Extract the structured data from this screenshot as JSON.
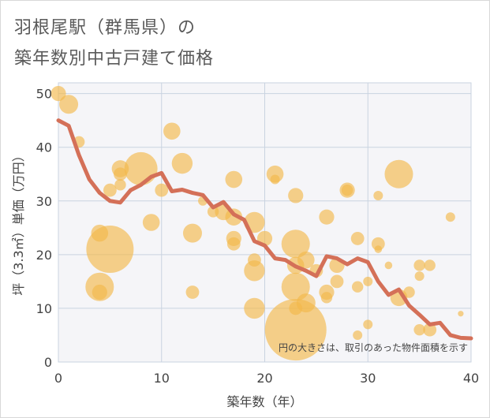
{
  "title_lines": [
    "羽根尾駅（群馬県）の",
    "築年数別中古戸建て価格"
  ],
  "chart_data": {
    "type": "scatter",
    "xlabel": "築年数（年）",
    "ylabel": "坪（3.3㎡）単価（万円）",
    "xlim": [
      0,
      40
    ],
    "ylim": [
      0,
      52
    ],
    "xticks": [
      "0",
      "10",
      "20",
      "30",
      "40"
    ],
    "yticks": [
      "0",
      "10",
      "20",
      "30",
      "40",
      "50"
    ],
    "note": "円の大きさは、取引のあった物件面積を示す",
    "colors": {
      "bubble": "#f2b84b",
      "line": "#d47058",
      "plot_bg": "#f5f5f8",
      "grid": "#c9d3e0"
    },
    "bubbles": [
      {
        "x": 0,
        "y": 50,
        "r": 1.6
      },
      {
        "x": 1,
        "y": 48,
        "r": 2
      },
      {
        "x": 2,
        "y": 41,
        "r": 1.2
      },
      {
        "x": 4,
        "y": 24,
        "r": 1.8
      },
      {
        "x": 4,
        "y": 14,
        "r": 3
      },
      {
        "x": 4,
        "y": 13,
        "r": 1.6
      },
      {
        "x": 5,
        "y": 21,
        "r": 5
      },
      {
        "x": 5,
        "y": 32,
        "r": 1.4
      },
      {
        "x": 6,
        "y": 36,
        "r": 1.8
      },
      {
        "x": 6,
        "y": 35,
        "r": 1.4
      },
      {
        "x": 6,
        "y": 33,
        "r": 1.2
      },
      {
        "x": 8,
        "y": 36,
        "r": 3.5
      },
      {
        "x": 9,
        "y": 26,
        "r": 1.8
      },
      {
        "x": 10,
        "y": 32,
        "r": 1.4
      },
      {
        "x": 11,
        "y": 43,
        "r": 1.8
      },
      {
        "x": 12,
        "y": 37,
        "r": 2.2
      },
      {
        "x": 13,
        "y": 24,
        "r": 2
      },
      {
        "x": 13,
        "y": 13,
        "r": 1.4
      },
      {
        "x": 15,
        "y": 28,
        "r": 1.2
      },
      {
        "x": 16,
        "y": 28,
        "r": 1.8
      },
      {
        "x": 17,
        "y": 34,
        "r": 1.8
      },
      {
        "x": 17,
        "y": 27,
        "r": 1.8
      },
      {
        "x": 17,
        "y": 23,
        "r": 1.6
      },
      {
        "x": 17,
        "y": 22,
        "r": 1.4
      },
      {
        "x": 19,
        "y": 26,
        "r": 2.2
      },
      {
        "x": 19,
        "y": 19,
        "r": 1.4
      },
      {
        "x": 19,
        "y": 17,
        "r": 2.2
      },
      {
        "x": 19,
        "y": 10,
        "r": 2.2
      },
      {
        "x": 20,
        "y": 23,
        "r": 1.6
      },
      {
        "x": 21,
        "y": 35,
        "r": 1.8
      },
      {
        "x": 21,
        "y": 34,
        "r": 1
      },
      {
        "x": 23,
        "y": 31,
        "r": 1.6
      },
      {
        "x": 23,
        "y": 22,
        "r": 3
      },
      {
        "x": 23,
        "y": 18,
        "r": 1.8
      },
      {
        "x": 23,
        "y": 14,
        "r": 3
      },
      {
        "x": 24,
        "y": 19,
        "r": 1.8
      },
      {
        "x": 24,
        "y": 11,
        "r": 2
      },
      {
        "x": 23,
        "y": 6,
        "r": 6.5
      },
      {
        "x": 23,
        "y": 10,
        "r": 1.4
      },
      {
        "x": 25,
        "y": 17,
        "r": 1.4
      },
      {
        "x": 26,
        "y": 27,
        "r": 1.6
      },
      {
        "x": 26,
        "y": 13,
        "r": 1.6
      },
      {
        "x": 26,
        "y": 12,
        "r": 1.2
      },
      {
        "x": 27,
        "y": 18,
        "r": 1.6
      },
      {
        "x": 27,
        "y": 15,
        "r": 1.4
      },
      {
        "x": 28,
        "y": 32,
        "r": 1.6
      },
      {
        "x": 28,
        "y": 32,
        "r": 1.2
      },
      {
        "x": 29,
        "y": 23,
        "r": 1.4
      },
      {
        "x": 29,
        "y": 14,
        "r": 1.2
      },
      {
        "x": 30,
        "y": 15,
        "r": 1
      },
      {
        "x": 30,
        "y": 7,
        "r": 1
      },
      {
        "x": 31,
        "y": 31,
        "r": 1
      },
      {
        "x": 31,
        "y": 22,
        "r": 1.4
      },
      {
        "x": 31,
        "y": 21,
        "r": 0.8
      },
      {
        "x": 32,
        "y": 18,
        "r": 0.8
      },
      {
        "x": 33,
        "y": 35,
        "r": 3
      },
      {
        "x": 33,
        "y": 12,
        "r": 1.8
      },
      {
        "x": 34,
        "y": 13,
        "r": 1.2
      },
      {
        "x": 35,
        "y": 18,
        "r": 1.2
      },
      {
        "x": 35,
        "y": 16,
        "r": 1
      },
      {
        "x": 35,
        "y": 6,
        "r": 1.2
      },
      {
        "x": 36,
        "y": 18,
        "r": 1.2
      },
      {
        "x": 36,
        "y": 6,
        "r": 1.4
      },
      {
        "x": 38,
        "y": 27,
        "r": 1
      },
      {
        "x": 39,
        "y": 9,
        "r": 0.6
      },
      {
        "x": 29,
        "y": 5,
        "r": 1
      },
      {
        "x": 14,
        "y": 30,
        "r": 1
      }
    ],
    "trend": [
      [
        0,
        45
      ],
      [
        1,
        44
      ],
      [
        2,
        38.5
      ],
      [
        3,
        34
      ],
      [
        4,
        31.5
      ],
      [
        5,
        30
      ],
      [
        6,
        29.7
      ],
      [
        7,
        32
      ],
      [
        8,
        33
      ],
      [
        9,
        34.5
      ],
      [
        10,
        35.2
      ],
      [
        11,
        31.8
      ],
      [
        12,
        32.1
      ],
      [
        13,
        31.5
      ],
      [
        14,
        31.1
      ],
      [
        15,
        28.8
      ],
      [
        16,
        29.8
      ],
      [
        17,
        27.5
      ],
      [
        18,
        26.5
      ],
      [
        19,
        22.5
      ],
      [
        20,
        21.7
      ],
      [
        21,
        19.3
      ],
      [
        22,
        19
      ],
      [
        23,
        17.8
      ],
      [
        24,
        17
      ],
      [
        25,
        16
      ],
      [
        26,
        19.7
      ],
      [
        27,
        19.3
      ],
      [
        28,
        18.2
      ],
      [
        29,
        19.3
      ],
      [
        30,
        18.6
      ],
      [
        31,
        15
      ],
      [
        32,
        12.5
      ],
      [
        33,
        13.5
      ],
      [
        34,
        10.5
      ],
      [
        35,
        8.8
      ],
      [
        36,
        7
      ],
      [
        37,
        7.3
      ],
      [
        38,
        5
      ],
      [
        39,
        4.5
      ],
      [
        40,
        4.4
      ]
    ]
  }
}
